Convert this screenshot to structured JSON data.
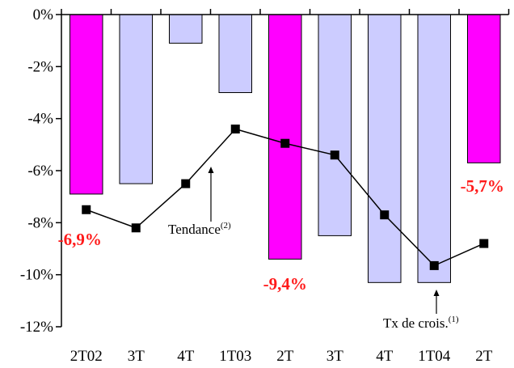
{
  "chart_data": {
    "type": "bar",
    "title": "",
    "xlabel": "",
    "ylabel": "",
    "categories": [
      "2T02",
      "3T",
      "4T",
      "1T03",
      "2T",
      "3T",
      "4T",
      "1T04",
      "2T"
    ],
    "ylim": [
      -12,
      0
    ],
    "y_ticks": [
      0,
      -2,
      -4,
      -6,
      -8,
      -10,
      -12
    ],
    "y_tick_labels": [
      "0%",
      "-2%",
      "-4%",
      "-6%",
      "-8%",
      "-10%",
      "-12%"
    ],
    "series": [
      {
        "kind": "bar",
        "values": [
          -6.9,
          -6.5,
          -1.1,
          -3.0,
          -9.4,
          -8.5,
          -10.3,
          -10.3,
          -5.7
        ],
        "highlight": [
          true,
          false,
          false,
          false,
          true,
          false,
          false,
          false,
          true
        ],
        "colors": {
          "highlight": "#ff00ff",
          "normal": "#ccccff"
        }
      },
      {
        "kind": "line",
        "values": [
          -7.5,
          -8.2,
          -6.5,
          -4.4,
          -4.95,
          -5.4,
          -7.7,
          -9.65,
          -8.8
        ],
        "color": "#000000"
      }
    ],
    "data_labels": [
      {
        "index": 0,
        "text": "-6,9%"
      },
      {
        "index": 4,
        "text": "-9,4%"
      },
      {
        "index": 8,
        "text": "-5,7%"
      }
    ],
    "annotations": [
      {
        "text": "Tendance",
        "sup": "(2)",
        "target_series": "line"
      },
      {
        "text": "Tx de crois.",
        "sup": "(1)",
        "target_series": "bar"
      }
    ],
    "grid": false,
    "legend": "none"
  }
}
